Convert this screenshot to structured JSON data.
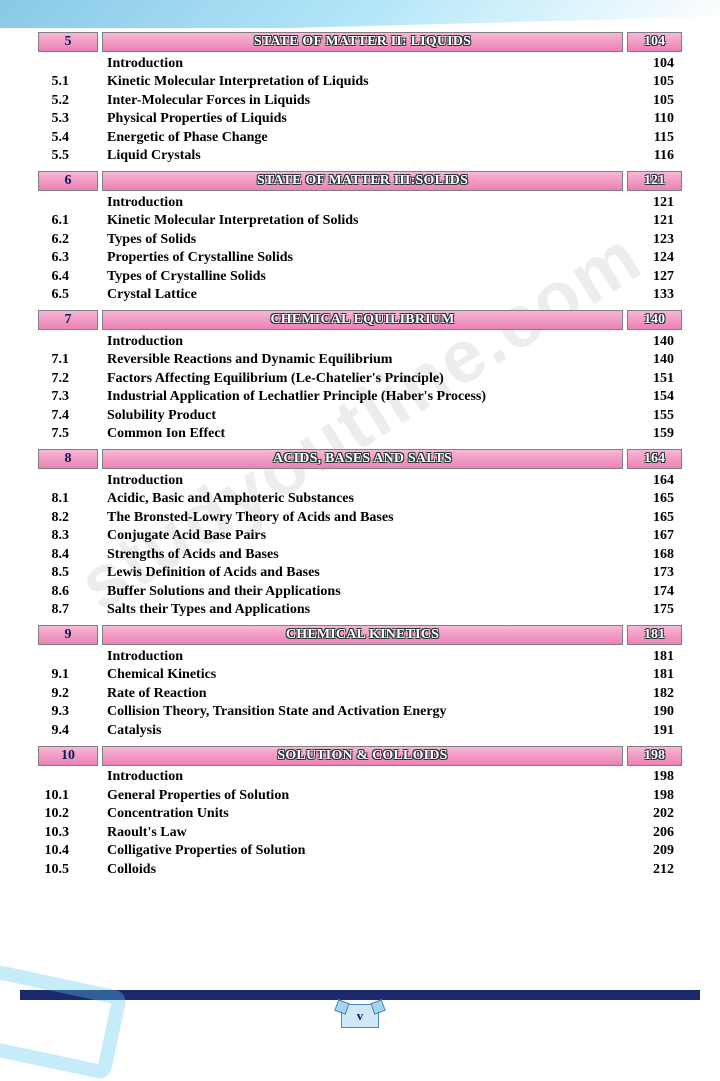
{
  "page_number_label": "v",
  "watermark_text": "studyoutline.com",
  "colors": {
    "header_gradient_top": "#f7b6d5",
    "header_gradient_bottom": "#ec80b4",
    "header_border": "#808080",
    "chapter_num_text": "#0a1b5c",
    "header_text": "#ffffff",
    "body_text": "#000000",
    "bottom_bar": "#1a2a6c",
    "page_tag_bg": "#cfe8f7",
    "page_tag_border": "#4a88b0"
  },
  "typography": {
    "body_font": "Times New Roman",
    "body_size_pt": 11,
    "header_size_pt": 11,
    "body_weight": "bold"
  },
  "chapters": [
    {
      "num": "5",
      "title": "STATE OF MATTER II: LIQUIDS",
      "page": "104",
      "rows": [
        {
          "n": "",
          "t": "Introduction",
          "p": "104"
        },
        {
          "n": "5.1",
          "t": "Kinetic  Molecular  Interpretation  of  Liquids",
          "p": "105"
        },
        {
          "n": "5.2",
          "t": "Inter-Molecular  Forces  in  Liquids",
          "p": "105"
        },
        {
          "n": "5.3",
          "t": "Physical Properties of Liquids",
          "p": "110"
        },
        {
          "n": "5.4",
          "t": "Energetic of Phase Change",
          "p": "115"
        },
        {
          "n": "5.5",
          "t": "Liquid Crystals",
          "p": "116"
        }
      ]
    },
    {
      "num": "6",
      "title": "STATE OF MATTER III:SOLIDS",
      "page": "121",
      "rows": [
        {
          "n": "",
          "t": "Introduction",
          "p": "121"
        },
        {
          "n": "6.1",
          "t": "Kinetic Molecular Interpretation of Solids",
          "p": "121"
        },
        {
          "n": "6.2",
          "t": "Types of Solids",
          "p": "123"
        },
        {
          "n": "6.3",
          "t": "Properties of Crystalline Solids",
          "p": "124"
        },
        {
          "n": "6.4",
          "t": "Types of Crystalline Solids",
          "p": "127"
        },
        {
          "n": "6.5",
          "t": "Crystal Lattice",
          "p": "133"
        }
      ]
    },
    {
      "num": "7",
      "title": "CHEMICAL EQUILIBRIUM",
      "page": "140",
      "rows": [
        {
          "n": "",
          "t": "Introduction",
          "p": "140"
        },
        {
          "n": "7.1",
          "t": "Reversible Reactions and Dynamic Equilibrium",
          "p": "140"
        },
        {
          "n": "7.2",
          "t": "Factors Affecting Equilibrium (Le-Chatelier's Principle)",
          "p": "151"
        },
        {
          "n": "7.3",
          "t": "Industrial Application of Lechatlier Principle (Haber's Process)",
          "p": "154"
        },
        {
          "n": "7.4",
          "t": "Solubility Product",
          "p": "155"
        },
        {
          "n": "7.5",
          "t": "Common Ion Effect",
          "p": "159"
        }
      ]
    },
    {
      "num": "8",
      "title": "ACIDS, BASES AND SALTS",
      "page": "164",
      "rows": [
        {
          "n": "",
          "t": "Introduction",
          "p": "164"
        },
        {
          "n": "8.1",
          "t": "Acidic, Basic and Amphoteric Substances",
          "p": "165"
        },
        {
          "n": "8.2",
          "t": "The Bronsted-Lowry  Theory of Acids and Bases",
          "p": "165"
        },
        {
          "n": "8.3",
          "t": "Conjugate Acid Base Pairs",
          "p": "167"
        },
        {
          "n": "8.4",
          "t": "Strengths of Acids and Bases",
          "p": "168"
        },
        {
          "n": "8.5",
          "t": "Lewis Definition of Acids and Bases",
          "p": "173"
        },
        {
          "n": "8.6",
          "t": "Buffer Solutions and their Applications",
          "p": "174"
        },
        {
          "n": "8.7",
          "t": "Salts their Types and Applications",
          "p": "175"
        }
      ]
    },
    {
      "num": "9",
      "title": "CHEMICAL KINETICS",
      "page": "181",
      "rows": [
        {
          "n": "",
          "t": "Introduction",
          "p": "181"
        },
        {
          "n": "9.1",
          "t": "Chemical Kinetics",
          "p": "181"
        },
        {
          "n": "9.2",
          "t": "Rate of Reaction",
          "p": "182"
        },
        {
          "n": "9.3",
          "t": "Collision Theory, Transition State and Activation Energy",
          "p": "190"
        },
        {
          "n": "9.4",
          "t": "Catalysis",
          "p": "191"
        }
      ]
    },
    {
      "num": "10",
      "title": "SOLUTION & COLLOIDS",
      "page": "198",
      "rows": [
        {
          "n": "",
          "t": "Introduction",
          "p": "198"
        },
        {
          "n": "10.1",
          "t": "General Properties of Solution",
          "p": "198"
        },
        {
          "n": "10.2",
          "t": "Concentration Units",
          "p": "202"
        },
        {
          "n": "10.3",
          "t": "Raoult's Law",
          "p": "206"
        },
        {
          "n": "10.4",
          "t": "Colligative Properties of Solution",
          "p": "209"
        },
        {
          "n": "10.5",
          "t": "Colloids",
          "p": "212"
        }
      ]
    }
  ]
}
